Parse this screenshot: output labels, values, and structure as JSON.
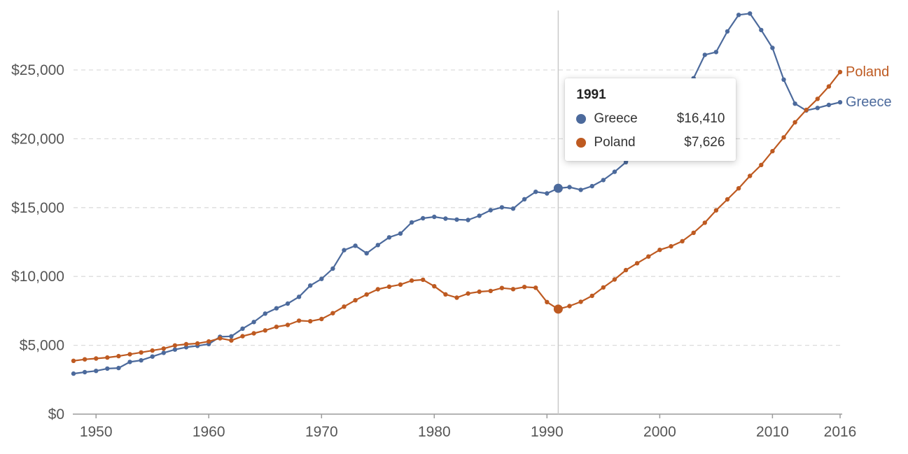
{
  "chart_data": {
    "type": "line",
    "title": "",
    "xlabel": "",
    "ylabel": "",
    "grid": "horizontal-dashed",
    "legend_position": "end-of-line",
    "highlight_year": 1991,
    "xlim": [
      1948,
      2016
    ],
    "ylim": [
      0,
      29600
    ],
    "x_ticks": [
      1950,
      1960,
      1970,
      1980,
      1990,
      2000,
      2010,
      2016
    ],
    "x_tick_labels": [
      "1950",
      "1960",
      "1970",
      "1980",
      "1990",
      "2000",
      "2010",
      "2016"
    ],
    "y_ticks": [
      0,
      5000,
      10000,
      15000,
      20000,
      25000
    ],
    "y_tick_labels": [
      "$0",
      "$5,000",
      "$10,000",
      "$15,000",
      "$20,000",
      "$25,000"
    ],
    "x": [
      1948,
      1949,
      1950,
      1951,
      1952,
      1953,
      1954,
      1955,
      1956,
      1957,
      1958,
      1959,
      1960,
      1961,
      1962,
      1963,
      1964,
      1965,
      1966,
      1967,
      1968,
      1969,
      1970,
      1971,
      1972,
      1973,
      1974,
      1975,
      1976,
      1977,
      1978,
      1979,
      1980,
      1981,
      1982,
      1983,
      1984,
      1985,
      1986,
      1987,
      1988,
      1989,
      1990,
      1991,
      1992,
      1993,
      1994,
      1995,
      1996,
      1997,
      1998,
      1999,
      2000,
      2001,
      2002,
      2003,
      2004,
      2005,
      2006,
      2007,
      2008,
      2009,
      2010,
      2011,
      2012,
      2013,
      2014,
      2015,
      2016
    ],
    "series": [
      {
        "name": "Greece",
        "color": "#4C6A9C",
        "values": [
          2940,
          3050,
          3140,
          3310,
          3350,
          3790,
          3910,
          4180,
          4450,
          4690,
          4860,
          4960,
          5090,
          5620,
          5650,
          6210,
          6690,
          7300,
          7690,
          8030,
          8520,
          9340,
          9820,
          10570,
          11910,
          12230,
          11680,
          12280,
          12840,
          13120,
          13930,
          14230,
          14330,
          14200,
          14130,
          14100,
          14410,
          14810,
          15020,
          14930,
          15610,
          16150,
          16030,
          16410,
          16490,
          16290,
          16560,
          17000,
          17600,
          18300,
          19000,
          19700,
          20500,
          21500,
          22900,
          24400,
          26100,
          26300,
          27800,
          29000,
          29100,
          27900,
          26600,
          24300,
          22550,
          22060,
          22240,
          22460,
          22650
        ]
      },
      {
        "name": "Poland",
        "color": "#BE5A21",
        "values": [
          3870,
          3980,
          4040,
          4110,
          4210,
          4350,
          4480,
          4620,
          4760,
          4990,
          5080,
          5130,
          5280,
          5510,
          5350,
          5660,
          5870,
          6080,
          6340,
          6480,
          6790,
          6750,
          6910,
          7330,
          7810,
          8270,
          8690,
          9070,
          9260,
          9410,
          9700,
          9760,
          9290,
          8700,
          8460,
          8760,
          8890,
          8950,
          9160,
          9080,
          9240,
          9180,
          8140,
          7626,
          7850,
          8160,
          8590,
          9200,
          9780,
          10460,
          10960,
          11450,
          11930,
          12190,
          12560,
          13170,
          13900,
          14800,
          15600,
          16400,
          17300,
          18100,
          19100,
          20100,
          21200,
          22100,
          22900,
          23800,
          24850
        ]
      }
    ]
  },
  "tooltip": {
    "year": "1991",
    "rows": [
      {
        "name": "Greece",
        "value": "$16,410",
        "color": "#4C6A9C"
      },
      {
        "name": "Poland",
        "value": "$7,626",
        "color": "#BE5A21"
      }
    ]
  },
  "end_labels": {
    "top": "Poland",
    "bottom": "Greece"
  },
  "colors": {
    "grid": "#dcdcdc",
    "axis": "#9b9b9b",
    "tick_text": "#565656",
    "highlight_line": "#c9c9c9",
    "tooltip_text": "#333333",
    "background": "#ffffff"
  }
}
